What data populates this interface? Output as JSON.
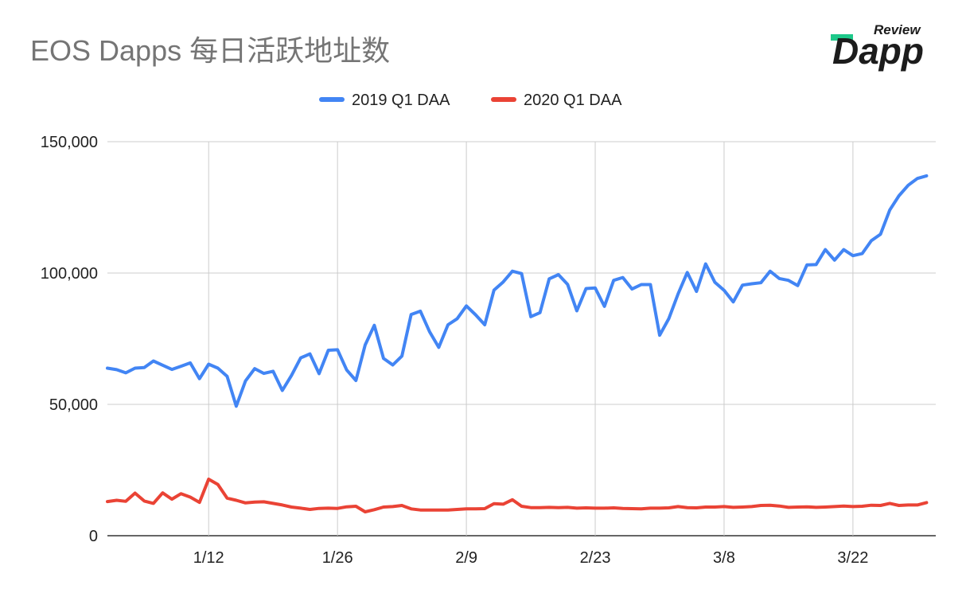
{
  "title": "EOS Dapps 每日活跃地址数",
  "logo": {
    "small_text": "Review",
    "main_text": "Dapp",
    "accent_color": "#1ec98a",
    "text_color": "#1c1c1c"
  },
  "legend": [
    {
      "label": "2019 Q1 DAA",
      "color": "#4285f4"
    },
    {
      "label": "2020 Q1 DAA",
      "color": "#ea4335"
    }
  ],
  "chart_data": {
    "type": "line",
    "title": "EOS Dapps 每日活跃地址数",
    "xlabel": "",
    "ylabel": "",
    "ylim": [
      0,
      150000
    ],
    "y_ticks": [
      0,
      50000,
      100000,
      150000
    ],
    "y_tick_labels": [
      "0",
      "50,000",
      "100,000",
      "150,000"
    ],
    "x_range": [
      1,
      91
    ],
    "x_ticks": [
      12,
      26,
      40,
      54,
      68,
      82
    ],
    "x_tick_labels": [
      "1/12",
      "1/26",
      "2/9",
      "2/23",
      "3/8",
      "3/22"
    ],
    "grid": true,
    "legend_position": "top",
    "series": [
      {
        "name": "2019 Q1 DAA",
        "color": "#4285f4",
        "values": [
          63800,
          63200,
          62000,
          63800,
          64000,
          66500,
          64900,
          63300,
          64500,
          65800,
          59800,
          65300,
          63800,
          60700,
          49300,
          58900,
          63600,
          61800,
          62600,
          55300,
          61000,
          67700,
          69200,
          61700,
          70600,
          70800,
          63100,
          59100,
          72600,
          80100,
          67500,
          65000,
          68400,
          84200,
          85500,
          77700,
          71700,
          80300,
          82600,
          87500,
          84100,
          80300,
          93500,
          96600,
          100700,
          99800,
          83400,
          84900,
          97800,
          99400,
          95700,
          85600,
          94100,
          94300,
          87300,
          97200,
          98300,
          93900,
          95600,
          95600,
          76300,
          82700,
          92000,
          100200,
          93000,
          103500,
          96500,
          93400,
          89000,
          95400,
          95900,
          96300,
          100700,
          97900,
          97200,
          95200,
          103100,
          103200,
          108900,
          104900,
          108900,
          106600,
          107400,
          112300,
          114800,
          124000,
          129400,
          133400,
          136000,
          137000
        ]
      },
      {
        "name": "2020 Q1 DAA",
        "color": "#ea4335",
        "values": [
          13000,
          13500,
          13100,
          16200,
          13200,
          12300,
          16300,
          13900,
          16000,
          14700,
          12700,
          21500,
          19500,
          14300,
          13500,
          12500,
          12800,
          12900,
          12300,
          11700,
          10900,
          10500,
          10000,
          10400,
          10500,
          10400,
          11000,
          11200,
          9100,
          9900,
          10900,
          11100,
          11500,
          10200,
          9800,
          9800,
          9800,
          9800,
          10000,
          10200,
          10200,
          10300,
          12200,
          12000,
          13700,
          11200,
          10700,
          10700,
          10800,
          10700,
          10800,
          10500,
          10600,
          10500,
          10500,
          10600,
          10400,
          10300,
          10200,
          10500,
          10500,
          10600,
          11100,
          10700,
          10600,
          10900,
          10900,
          11100,
          10800,
          10900,
          11100,
          11500,
          11600,
          11300,
          10800,
          10900,
          11000,
          10800,
          10900,
          11100,
          11300,
          11100,
          11200,
          11600,
          11500,
          12300,
          11500,
          11700,
          11700,
          12600
        ]
      }
    ]
  }
}
